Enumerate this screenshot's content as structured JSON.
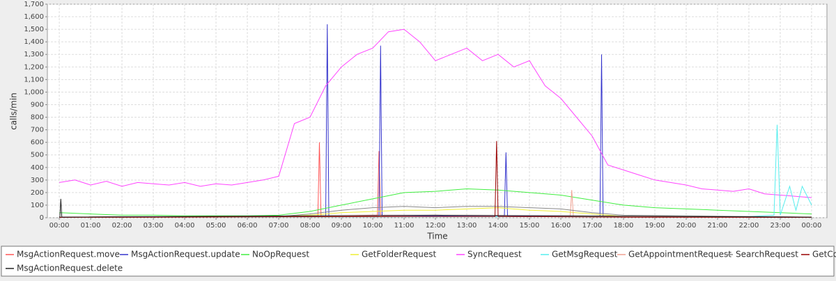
{
  "chart_data": {
    "type": "line",
    "xlabel": "Time",
    "ylabel": "calls/min",
    "xlim": [
      -0.38,
      24.49
    ],
    "ylim": [
      0,
      1700
    ],
    "xticks": [
      {
        "value": 0,
        "label": "00:00"
      },
      {
        "value": 1,
        "label": "01:00"
      },
      {
        "value": 2,
        "label": "02:00"
      },
      {
        "value": 3,
        "label": "03:00"
      },
      {
        "value": 4,
        "label": "04:00"
      },
      {
        "value": 5,
        "label": "05:00"
      },
      {
        "value": 6,
        "label": "06:00"
      },
      {
        "value": 7,
        "label": "07:00"
      },
      {
        "value": 8,
        "label": "08:00"
      },
      {
        "value": 9,
        "label": "09:00"
      },
      {
        "value": 10,
        "label": "10:00"
      },
      {
        "value": 11,
        "label": "11:00"
      },
      {
        "value": 12,
        "label": "12:00"
      },
      {
        "value": 13,
        "label": "13:00"
      },
      {
        "value": 14,
        "label": "14:00"
      },
      {
        "value": 15,
        "label": "15:00"
      },
      {
        "value": 16,
        "label": "16:00"
      },
      {
        "value": 17,
        "label": "17:00"
      },
      {
        "value": 18,
        "label": "18:00"
      },
      {
        "value": 19,
        "label": "19:00"
      },
      {
        "value": 20,
        "label": "20:00"
      },
      {
        "value": 21,
        "label": "21:00"
      },
      {
        "value": 22,
        "label": "22:00"
      },
      {
        "value": 23,
        "label": "23:00"
      },
      {
        "value": 24,
        "label": "00:00"
      }
    ],
    "yticks": [
      0,
      100,
      200,
      300,
      400,
      500,
      600,
      700,
      800,
      900,
      {
        "value": 1000,
        "label": "1,000"
      },
      {
        "value": 1100,
        "label": "1,100"
      },
      {
        "value": 1200,
        "label": "1,200"
      },
      {
        "value": 1300,
        "label": "1,300"
      },
      {
        "value": 1400,
        "label": "1,400"
      },
      {
        "value": 1500,
        "label": "1,500"
      },
      {
        "value": 1600,
        "label": "1,600"
      },
      {
        "value": 1700,
        "label": "1,700"
      }
    ],
    "grid": true,
    "series": [
      {
        "name": "MsgActionRequest.move",
        "color": "#ff5555",
        "x": [
          0,
          8,
          8.25,
          8.3,
          8.35,
          10,
          10.15,
          10.2,
          10.25,
          14,
          18,
          24
        ],
        "values": [
          5,
          10,
          15,
          600,
          15,
          20,
          20,
          530,
          20,
          15,
          5,
          5
        ]
      },
      {
        "name": "MsgActionRequest.update",
        "color": "#3333cc",
        "x": [
          0,
          8,
          8.5,
          8.55,
          8.6,
          10.2,
          10.25,
          10.3,
          14.2,
          14.25,
          14.3,
          17.25,
          17.3,
          17.35,
          24
        ],
        "values": [
          5,
          10,
          15,
          1540,
          15,
          15,
          1370,
          15,
          15,
          520,
          15,
          10,
          1300,
          10,
          5
        ]
      },
      {
        "name": "NoOpRequest",
        "color": "#40ee40",
        "x": [
          0,
          1,
          2,
          3,
          4,
          5,
          6,
          7,
          8,
          9,
          10,
          11,
          12,
          13,
          14,
          15,
          16,
          17,
          18,
          19,
          20,
          21,
          22,
          23,
          24
        ],
        "values": [
          40,
          30,
          20,
          20,
          15,
          15,
          15,
          20,
          50,
          100,
          150,
          200,
          210,
          230,
          220,
          200,
          180,
          140,
          100,
          80,
          70,
          60,
          50,
          40,
          30
        ]
      },
      {
        "name": "GetFolderRequest",
        "color": "#eeee33",
        "x": [
          0,
          7,
          8,
          9,
          10,
          11,
          12,
          13,
          14,
          15,
          16,
          17,
          18,
          24
        ],
        "values": [
          5,
          10,
          20,
          40,
          50,
          60,
          60,
          70,
          80,
          60,
          50,
          30,
          10,
          5
        ]
      },
      {
        "name": "SyncRequest",
        "color": "#ff44ff",
        "x": [
          0,
          0.5,
          1,
          1.5,
          2,
          2.5,
          3,
          3.5,
          4,
          4.5,
          5,
          5.5,
          6,
          6.5,
          7,
          7.5,
          8,
          8.5,
          9,
          9.5,
          10,
          10.5,
          11,
          11.5,
          12,
          12.5,
          13,
          13.5,
          14,
          14.5,
          15,
          15.5,
          16,
          16.5,
          17,
          17.5,
          18,
          18.5,
          19,
          19.5,
          20,
          20.5,
          21,
          21.5,
          22,
          22.5,
          23,
          23.5,
          24
        ],
        "values": [
          280,
          300,
          260,
          290,
          250,
          280,
          270,
          260,
          280,
          250,
          270,
          260,
          280,
          300,
          330,
          750,
          800,
          1050,
          1200,
          1300,
          1350,
          1480,
          1500,
          1400,
          1250,
          1300,
          1350,
          1250,
          1300,
          1200,
          1250,
          1050,
          950,
          800,
          650,
          420,
          380,
          340,
          300,
          280,
          260,
          230,
          220,
          210,
          230,
          190,
          180,
          170,
          160
        ]
      },
      {
        "name": "GetMsgRequest",
        "color": "#55eeee",
        "x": [
          0,
          22,
          22.8,
          22.9,
          23,
          23.3,
          23.5,
          23.7,
          24
        ],
        "values": [
          5,
          10,
          20,
          740,
          20,
          250,
          60,
          250,
          100
        ]
      },
      {
        "name": "GetAppointmentRequest",
        "color": "#f0a090",
        "x": [
          0,
          8,
          12,
          16,
          16.3,
          16.35,
          16.4,
          20,
          24
        ],
        "values": [
          3,
          10,
          20,
          15,
          15,
          220,
          15,
          5,
          3
        ]
      },
      {
        "name": "SearchRequest",
        "color": "#888888",
        "x": [
          0,
          7,
          8,
          9,
          10,
          11,
          12,
          13,
          14,
          15,
          16,
          17,
          18,
          24
        ],
        "values": [
          5,
          10,
          30,
          60,
          80,
          90,
          80,
          90,
          90,
          80,
          70,
          40,
          20,
          5
        ]
      },
      {
        "name": "GetContactsRequest",
        "color": "#990000",
        "x": [
          0,
          8,
          13.9,
          13.95,
          14,
          18,
          24
        ],
        "values": [
          3,
          8,
          10,
          610,
          10,
          5,
          3
        ]
      },
      {
        "name": "MsgActionRequest.delete",
        "color": "#222222",
        "x": [
          0,
          0.02,
          0.05,
          0.08,
          8,
          12,
          16,
          24
        ],
        "values": [
          5,
          5,
          150,
          5,
          15,
          20,
          15,
          5
        ]
      }
    ]
  }
}
